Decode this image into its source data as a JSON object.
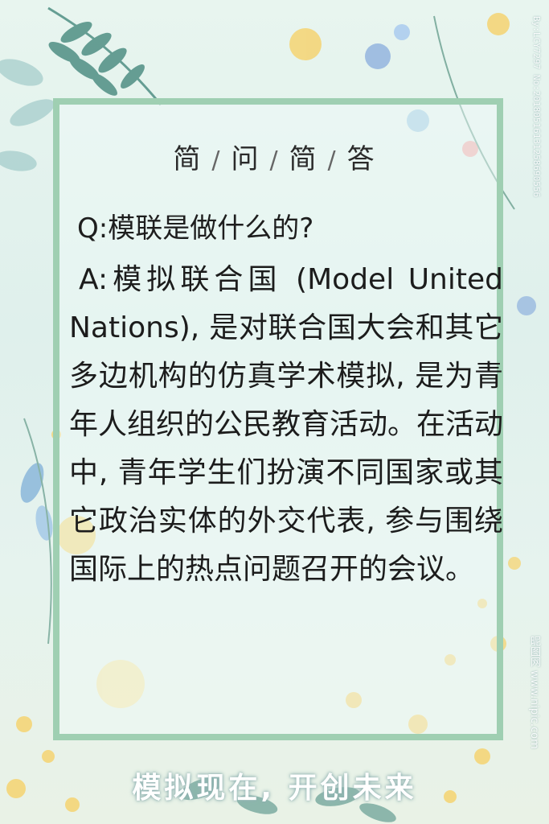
{
  "title": {
    "parts": [
      "简",
      "问",
      "简",
      "答"
    ],
    "separator": "/"
  },
  "qa": {
    "question": "Q:模联是做什么的?",
    "answer": "A:模拟联合国 (Model United Nations), 是对联合国大会和其它多边机构的仿真学术模拟, 是为青年人组织的公民教育活动。在活动中, 青年学生们扮演不同国家或其它政治实体的外交代表, 参与围绕国际上的热点问题召开的会议。"
  },
  "slogan": "模拟现在, 开创未来",
  "watermarks": {
    "right": "By:LCY7297 No:20180516131258690556",
    "bottom": "昵图网 www.nipic.com"
  },
  "colors": {
    "frame": "#9fcfb2",
    "leaf": "#4f8f84",
    "flower_yellow": "#f6d26a",
    "flower_blue": "#8fb1de"
  }
}
